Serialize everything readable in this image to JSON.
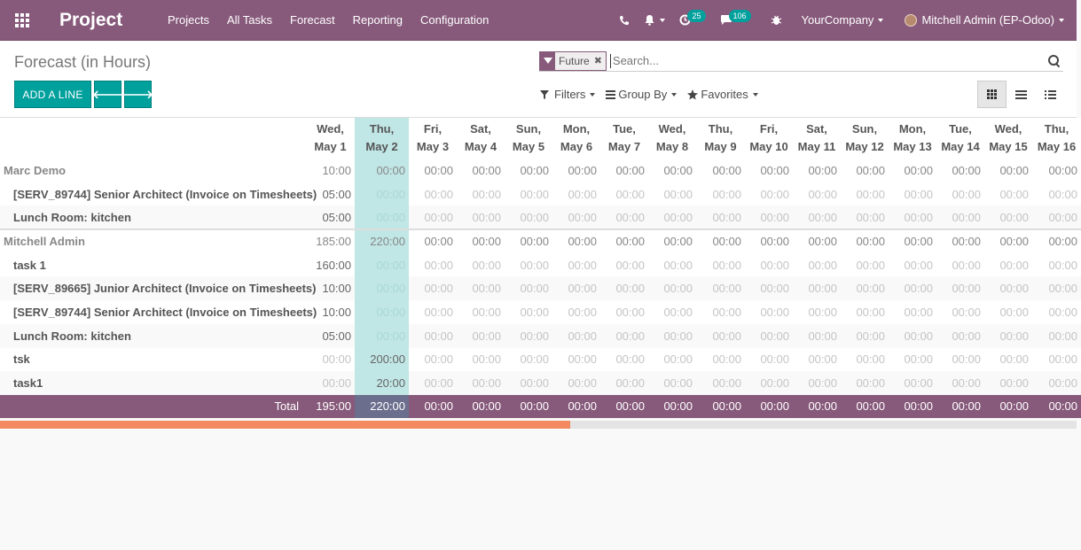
{
  "navbar": {
    "brand": "Project",
    "menu": [
      "Projects",
      "All Tasks",
      "Forecast",
      "Reporting",
      "Configuration"
    ],
    "activity_count": "25",
    "messages_count": "106",
    "company": "YourCompany",
    "user": "Mitchell Admin (EP-Odoo)"
  },
  "control": {
    "title": "Forecast (in Hours)",
    "add_label": "ADD A LINE",
    "prev_glyph": "🡐",
    "next_glyph": "🡒",
    "facet_value": "Future",
    "facet_remove": "✖",
    "search_placeholder": "Search...",
    "filters_label": "Filters",
    "groupby_label": "Group By",
    "favorites_label": "Favorites"
  },
  "grid": {
    "days": [
      {
        "d": "Wed,",
        "m": "May 1"
      },
      {
        "d": "Thu,",
        "m": "May 2"
      },
      {
        "d": "Fri,",
        "m": "May 3"
      },
      {
        "d": "Sat,",
        "m": "May 4"
      },
      {
        "d": "Sun,",
        "m": "May 5"
      },
      {
        "d": "Mon,",
        "m": "May 6"
      },
      {
        "d": "Tue,",
        "m": "May 7"
      },
      {
        "d": "Wed,",
        "m": "May 8"
      },
      {
        "d": "Thu,",
        "m": "May 9"
      },
      {
        "d": "Fri,",
        "m": "May 10"
      },
      {
        "d": "Sat,",
        "m": "May 11"
      },
      {
        "d": "Sun,",
        "m": "May 12"
      },
      {
        "d": "Mon,",
        "m": "May 13"
      },
      {
        "d": "Tue,",
        "m": "May 14"
      },
      {
        "d": "Wed,",
        "m": "May 15"
      },
      {
        "d": "Thu,",
        "m": "May 16"
      }
    ],
    "today_index": 1,
    "rows": [
      {
        "type": "group",
        "label": "Marc Demo",
        "values": [
          "10:00",
          "00:00",
          "00:00",
          "00:00",
          "00:00",
          "00:00",
          "00:00",
          "00:00",
          "00:00",
          "00:00",
          "00:00",
          "00:00",
          "00:00",
          "00:00",
          "00:00",
          "00:00"
        ]
      },
      {
        "type": "line",
        "label": "[SERV_89744] Senior Architect (Invoice on Timesheets)",
        "values": [
          "05:00",
          "00:00",
          "00:00",
          "00:00",
          "00:00",
          "00:00",
          "00:00",
          "00:00",
          "00:00",
          "00:00",
          "00:00",
          "00:00",
          "00:00",
          "00:00",
          "00:00",
          "00:00"
        ]
      },
      {
        "type": "line",
        "label": "Lunch Room: kitchen",
        "values": [
          "05:00",
          "00:00",
          "00:00",
          "00:00",
          "00:00",
          "00:00",
          "00:00",
          "00:00",
          "00:00",
          "00:00",
          "00:00",
          "00:00",
          "00:00",
          "00:00",
          "00:00",
          "00:00"
        ]
      },
      {
        "type": "group",
        "label": "Mitchell Admin",
        "values": [
          "185:00",
          "220:00",
          "00:00",
          "00:00",
          "00:00",
          "00:00",
          "00:00",
          "00:00",
          "00:00",
          "00:00",
          "00:00",
          "00:00",
          "00:00",
          "00:00",
          "00:00",
          "00:00"
        ]
      },
      {
        "type": "line",
        "label": "task 1",
        "values": [
          "160:00",
          "00:00",
          "00:00",
          "00:00",
          "00:00",
          "00:00",
          "00:00",
          "00:00",
          "00:00",
          "00:00",
          "00:00",
          "00:00",
          "00:00",
          "00:00",
          "00:00",
          "00:00"
        ]
      },
      {
        "type": "line",
        "label": "[SERV_89665] Junior Architect (Invoice on Timesheets)",
        "values": [
          "10:00",
          "00:00",
          "00:00",
          "00:00",
          "00:00",
          "00:00",
          "00:00",
          "00:00",
          "00:00",
          "00:00",
          "00:00",
          "00:00",
          "00:00",
          "00:00",
          "00:00",
          "00:00"
        ]
      },
      {
        "type": "line",
        "label": "[SERV_89744] Senior Architect (Invoice on Timesheets)",
        "values": [
          "10:00",
          "00:00",
          "00:00",
          "00:00",
          "00:00",
          "00:00",
          "00:00",
          "00:00",
          "00:00",
          "00:00",
          "00:00",
          "00:00",
          "00:00",
          "00:00",
          "00:00",
          "00:00"
        ]
      },
      {
        "type": "line",
        "label": "Lunch Room: kitchen",
        "values": [
          "05:00",
          "00:00",
          "00:00",
          "00:00",
          "00:00",
          "00:00",
          "00:00",
          "00:00",
          "00:00",
          "00:00",
          "00:00",
          "00:00",
          "00:00",
          "00:00",
          "00:00",
          "00:00"
        ]
      },
      {
        "type": "line",
        "label": "tsk",
        "values": [
          "00:00",
          "200:00",
          "00:00",
          "00:00",
          "00:00",
          "00:00",
          "00:00",
          "00:00",
          "00:00",
          "00:00",
          "00:00",
          "00:00",
          "00:00",
          "00:00",
          "00:00",
          "00:00"
        ]
      },
      {
        "type": "line",
        "label": "task1",
        "values": [
          "00:00",
          "20:00",
          "00:00",
          "00:00",
          "00:00",
          "00:00",
          "00:00",
          "00:00",
          "00:00",
          "00:00",
          "00:00",
          "00:00",
          "00:00",
          "00:00",
          "00:00",
          "00:00"
        ]
      }
    ],
    "total_label": "Total",
    "totals": [
      "195:00",
      "220:00",
      "00:00",
      "00:00",
      "00:00",
      "00:00",
      "00:00",
      "00:00",
      "00:00",
      "00:00",
      "00:00",
      "00:00",
      "00:00",
      "00:00",
      "00:00",
      "00:00"
    ]
  },
  "progress": {
    "fraction": 0.53
  },
  "colors": {
    "brand": "#875a7b",
    "accent": "#00a09d",
    "today": "#c0e6e5",
    "progress": "#f48b60"
  }
}
